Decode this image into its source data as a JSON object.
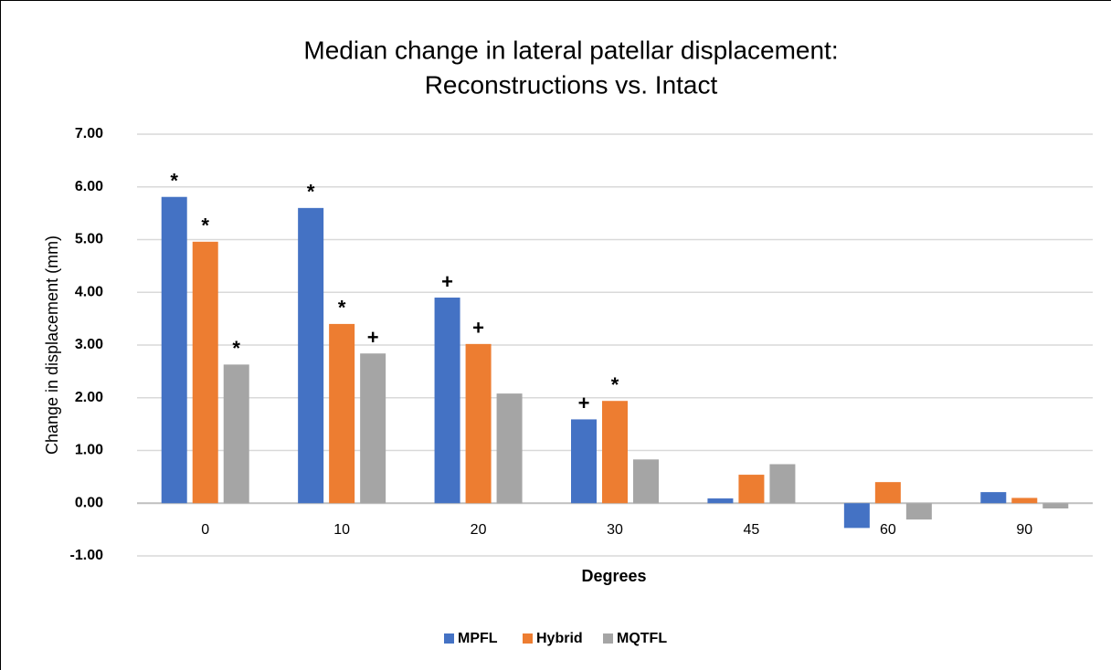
{
  "chart_data": {
    "type": "bar",
    "title": [
      "Median change in lateral patellar displacement:",
      "Reconstructions vs. Intact"
    ],
    "x_label": "Degrees",
    "y_label": "Change in displacement (mm)",
    "categories": [
      "0",
      "10",
      "20",
      "30",
      "45",
      "60",
      "90"
    ],
    "series": [
      {
        "name": "MPFL",
        "color": "#4472c4",
        "values": [
          5.81,
          5.6,
          3.9,
          1.59,
          0.09,
          -0.47,
          0.21
        ],
        "annotations": [
          "*",
          "*",
          "+",
          "+",
          null,
          null,
          null
        ]
      },
      {
        "name": "Hybrid",
        "color": "#ed7d31",
        "values": [
          4.96,
          3.4,
          3.02,
          1.94,
          0.54,
          0.4,
          0.1
        ],
        "annotations": [
          "*",
          "*",
          "+",
          "*",
          null,
          null,
          null
        ]
      },
      {
        "name": "MQTFL",
        "color": "#a5a5a5",
        "values": [
          2.63,
          2.84,
          2.08,
          0.83,
          0.74,
          -0.31,
          -0.1
        ],
        "annotations": [
          "*",
          "+",
          null,
          null,
          null,
          null,
          null
        ]
      }
    ],
    "ylim": [
      -1,
      7
    ],
    "yticks": [
      {
        "value": -1,
        "label": "-1.00"
      },
      {
        "value": 0,
        "label": "0.00"
      },
      {
        "value": 1,
        "label": "1.00"
      },
      {
        "value": 2,
        "label": "2.00"
      },
      {
        "value": 3,
        "label": "3.00"
      },
      {
        "value": 4,
        "label": "4.00"
      },
      {
        "value": 5,
        "label": "5.00"
      },
      {
        "value": 6,
        "label": "6.00"
      },
      {
        "value": 7,
        "label": "7.00"
      }
    ],
    "grid": true,
    "legend": "bottom"
  }
}
